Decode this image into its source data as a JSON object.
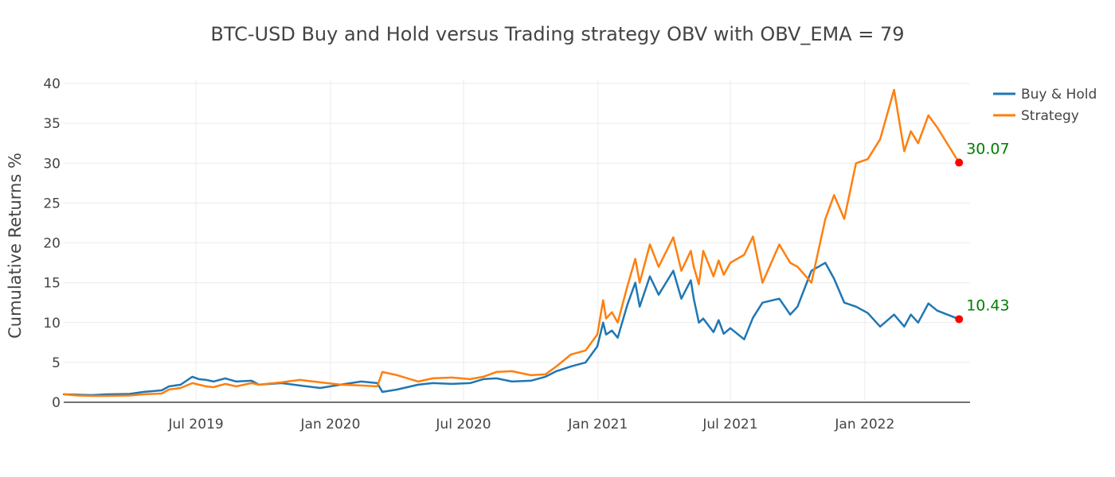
{
  "chart_data": {
    "type": "line",
    "title": "BTC-USD Buy and Hold versus Trading strategy OBV with OBV_EMA = 79",
    "xlabel": "",
    "ylabel": "Cumulative Returns %",
    "x_range": [
      "2019-01-01",
      "2022-05-25"
    ],
    "ylim": [
      0,
      40.5
    ],
    "y_ticks": [
      0,
      5,
      10,
      15,
      20,
      25,
      30,
      35,
      40
    ],
    "x_ticks": [
      {
        "date": "2019-07-01",
        "label": "Jul 2019"
      },
      {
        "date": "2020-01-01",
        "label": "Jan 2020"
      },
      {
        "date": "2020-07-01",
        "label": "Jul 2020"
      },
      {
        "date": "2021-01-01",
        "label": "Jan 2021"
      },
      {
        "date": "2021-07-01",
        "label": "Jul 2021"
      },
      {
        "date": "2022-01-01",
        "label": "Jan 2022"
      }
    ],
    "grid": true,
    "legend_position": "top-right",
    "series": [
      {
        "name": "Buy & Hold",
        "color": "#1f77b4",
        "points": [
          [
            "2019-01-01",
            1.0
          ],
          [
            "2019-01-20",
            0.95
          ],
          [
            "2019-02-08",
            0.9
          ],
          [
            "2019-03-01",
            1.0
          ],
          [
            "2019-04-01",
            1.05
          ],
          [
            "2019-04-20",
            1.3
          ],
          [
            "2019-05-15",
            1.5
          ],
          [
            "2019-05-25",
            2.0
          ],
          [
            "2019-06-10",
            2.2
          ],
          [
            "2019-06-26",
            3.2
          ],
          [
            "2019-07-05",
            2.9
          ],
          [
            "2019-07-15",
            2.8
          ],
          [
            "2019-07-25",
            2.6
          ],
          [
            "2019-08-10",
            3.0
          ],
          [
            "2019-08-25",
            2.6
          ],
          [
            "2019-09-15",
            2.7
          ],
          [
            "2019-09-25",
            2.2
          ],
          [
            "2019-10-26",
            2.4
          ],
          [
            "2019-11-20",
            2.1
          ],
          [
            "2019-12-18",
            1.8
          ],
          [
            "2020-01-15",
            2.2
          ],
          [
            "2020-02-12",
            2.6
          ],
          [
            "2020-03-05",
            2.4
          ],
          [
            "2020-03-12",
            1.3
          ],
          [
            "2020-04-01",
            1.6
          ],
          [
            "2020-04-30",
            2.2
          ],
          [
            "2020-05-20",
            2.4
          ],
          [
            "2020-06-15",
            2.3
          ],
          [
            "2020-07-10",
            2.4
          ],
          [
            "2020-07-28",
            2.9
          ],
          [
            "2020-08-15",
            3.0
          ],
          [
            "2020-09-05",
            2.6
          ],
          [
            "2020-10-01",
            2.7
          ],
          [
            "2020-10-21",
            3.2
          ],
          [
            "2020-11-05",
            3.9
          ],
          [
            "2020-11-25",
            4.5
          ],
          [
            "2020-12-15",
            5.0
          ],
          [
            "2020-12-31",
            7.0
          ],
          [
            "2021-01-08",
            10.0
          ],
          [
            "2021-01-12",
            8.5
          ],
          [
            "2021-01-20",
            9.0
          ],
          [
            "2021-01-28",
            8.1
          ],
          [
            "2021-02-10",
            12.2
          ],
          [
            "2021-02-21",
            15.0
          ],
          [
            "2021-02-27",
            12.0
          ],
          [
            "2021-03-13",
            15.8
          ],
          [
            "2021-03-25",
            13.5
          ],
          [
            "2021-04-14",
            16.5
          ],
          [
            "2021-04-25",
            13.0
          ],
          [
            "2021-05-08",
            15.3
          ],
          [
            "2021-05-12",
            13.0
          ],
          [
            "2021-05-19",
            10.0
          ],
          [
            "2021-05-25",
            10.5
          ],
          [
            "2021-06-08",
            8.8
          ],
          [
            "2021-06-15",
            10.3
          ],
          [
            "2021-06-22",
            8.6
          ],
          [
            "2021-07-01",
            9.3
          ],
          [
            "2021-07-20",
            7.9
          ],
          [
            "2021-08-01",
            10.6
          ],
          [
            "2021-08-14",
            12.5
          ],
          [
            "2021-09-06",
            13.0
          ],
          [
            "2021-09-21",
            11.0
          ],
          [
            "2021-10-01",
            12.0
          ],
          [
            "2021-10-20",
            16.5
          ],
          [
            "2021-11-08",
            17.5
          ],
          [
            "2021-11-20",
            15.5
          ],
          [
            "2021-12-04",
            12.5
          ],
          [
            "2021-12-20",
            12.0
          ],
          [
            "2022-01-05",
            11.2
          ],
          [
            "2022-01-22",
            9.5
          ],
          [
            "2022-02-10",
            11.0
          ],
          [
            "2022-02-24",
            9.5
          ],
          [
            "2022-03-05",
            11.0
          ],
          [
            "2022-03-15",
            10.0
          ],
          [
            "2022-03-29",
            12.4
          ],
          [
            "2022-04-10",
            11.5
          ],
          [
            "2022-05-10",
            10.43
          ]
        ],
        "end_value": "10.43"
      },
      {
        "name": "Strategy",
        "color": "#ff7f0e",
        "points": [
          [
            "2019-01-01",
            1.0
          ],
          [
            "2019-01-20",
            0.85
          ],
          [
            "2019-02-08",
            0.8
          ],
          [
            "2019-03-01",
            0.8
          ],
          [
            "2019-04-01",
            0.85
          ],
          [
            "2019-04-20",
            1.0
          ],
          [
            "2019-05-15",
            1.1
          ],
          [
            "2019-05-25",
            1.6
          ],
          [
            "2019-06-10",
            1.8
          ],
          [
            "2019-06-26",
            2.4
          ],
          [
            "2019-07-05",
            2.2
          ],
          [
            "2019-07-15",
            2.0
          ],
          [
            "2019-07-25",
            1.9
          ],
          [
            "2019-08-10",
            2.3
          ],
          [
            "2019-08-25",
            2.0
          ],
          [
            "2019-09-15",
            2.4
          ],
          [
            "2019-09-25",
            2.2
          ],
          [
            "2019-10-26",
            2.5
          ],
          [
            "2019-11-20",
            2.8
          ],
          [
            "2019-12-18",
            2.5
          ],
          [
            "2020-01-15",
            2.2
          ],
          [
            "2020-02-12",
            2.1
          ],
          [
            "2020-03-05",
            2.0
          ],
          [
            "2020-03-12",
            3.8
          ],
          [
            "2020-04-01",
            3.4
          ],
          [
            "2020-04-30",
            2.6
          ],
          [
            "2020-05-20",
            3.0
          ],
          [
            "2020-06-15",
            3.1
          ],
          [
            "2020-07-10",
            2.9
          ],
          [
            "2020-07-28",
            3.2
          ],
          [
            "2020-08-15",
            3.8
          ],
          [
            "2020-09-05",
            3.9
          ],
          [
            "2020-10-01",
            3.4
          ],
          [
            "2020-10-21",
            3.5
          ],
          [
            "2020-11-05",
            4.5
          ],
          [
            "2020-11-25",
            6.0
          ],
          [
            "2020-12-15",
            6.5
          ],
          [
            "2020-12-31",
            8.5
          ],
          [
            "2021-01-08",
            12.8
          ],
          [
            "2021-01-12",
            10.5
          ],
          [
            "2021-01-20",
            11.3
          ],
          [
            "2021-01-28",
            10.0
          ],
          [
            "2021-02-10",
            14.5
          ],
          [
            "2021-02-21",
            18.0
          ],
          [
            "2021-02-27",
            15.0
          ],
          [
            "2021-03-13",
            19.8
          ],
          [
            "2021-03-25",
            17.0
          ],
          [
            "2021-04-14",
            20.7
          ],
          [
            "2021-04-25",
            16.5
          ],
          [
            "2021-05-08",
            19.0
          ],
          [
            "2021-05-12",
            17.0
          ],
          [
            "2021-05-19",
            14.8
          ],
          [
            "2021-05-25",
            19.0
          ],
          [
            "2021-06-08",
            15.8
          ],
          [
            "2021-06-15",
            17.8
          ],
          [
            "2021-06-22",
            16.0
          ],
          [
            "2021-07-01",
            17.5
          ],
          [
            "2021-07-20",
            18.5
          ],
          [
            "2021-08-01",
            20.8
          ],
          [
            "2021-08-14",
            15.0
          ],
          [
            "2021-09-06",
            19.8
          ],
          [
            "2021-09-21",
            17.5
          ],
          [
            "2021-10-01",
            17.0
          ],
          [
            "2021-10-20",
            15.0
          ],
          [
            "2021-11-08",
            23.0
          ],
          [
            "2021-11-20",
            26.0
          ],
          [
            "2021-12-04",
            23.0
          ],
          [
            "2021-12-20",
            30.0
          ],
          [
            "2022-01-05",
            30.5
          ],
          [
            "2022-01-22",
            33.0
          ],
          [
            "2022-02-10",
            39.2
          ],
          [
            "2022-02-24",
            31.5
          ],
          [
            "2022-03-05",
            34.0
          ],
          [
            "2022-03-15",
            32.5
          ],
          [
            "2022-03-29",
            36.0
          ],
          [
            "2022-04-10",
            34.5
          ],
          [
            "2022-05-10",
            30.07
          ]
        ],
        "end_value": "30.07"
      }
    ],
    "end_marker_color": "#ff0000",
    "end_label_color": "#008000"
  }
}
